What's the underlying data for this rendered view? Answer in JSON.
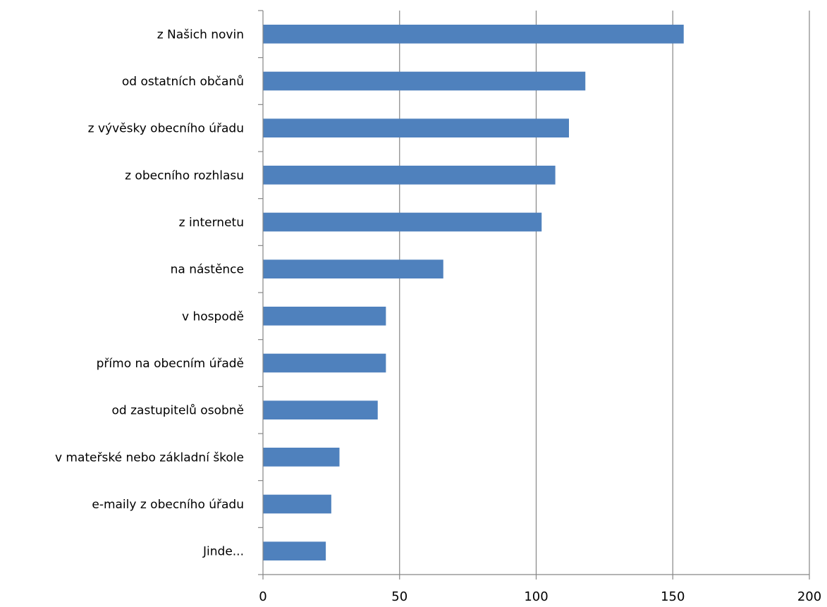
{
  "chart_data": {
    "type": "bar",
    "orientation": "horizontal",
    "categories": [
      "z Našich novin",
      "od ostatních občanů",
      "z vývěsky obecního úřadu",
      "z obecního rozhlasu",
      "z internetu",
      "na nástěnce",
      "v hospodě",
      "přímo na obecním úřadě ",
      "od zastupitelů osobně",
      "v mateřské nebo základní škole",
      "e-maily z obecního úřadu",
      "Jinde..."
    ],
    "values": [
      154,
      118,
      112,
      107,
      102,
      66,
      45,
      45,
      42,
      28,
      25,
      23
    ],
    "xlim": [
      0,
      200
    ],
    "xticks": [
      "0",
      "50",
      "100",
      "150",
      "200"
    ],
    "grid": "vertical",
    "legend": "none",
    "bar_color": "#4F81BD",
    "grid_color": "#868686",
    "axis_color": "#868686"
  }
}
